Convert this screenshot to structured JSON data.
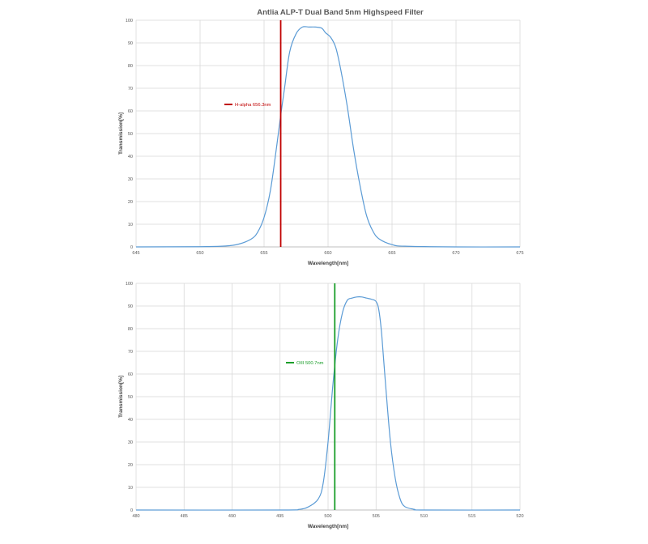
{
  "title": "Antlia ALP-T Dual Band 5nm Highspeed Filter",
  "colors": {
    "curve": "#5b9bd5",
    "halpha": "#c00000",
    "oiii": "#1a9e2a",
    "grid": "#d9d9d9",
    "axis": "#bfbfbf"
  },
  "chart_data": [
    {
      "type": "line",
      "title": "Antlia ALP-T Dual Band 5nm Highspeed Filter",
      "xlabel": "Wavelength[nm]",
      "ylabel": "Transmission[%]",
      "xlim": [
        645,
        675
      ],
      "ylim": [
        0,
        100
      ],
      "xticks": [
        645,
        650,
        655,
        660,
        665,
        670,
        675
      ],
      "yticks": [
        0,
        10,
        20,
        30,
        40,
        50,
        60,
        70,
        80,
        90,
        100
      ],
      "grid": true,
      "series": [
        {
          "x": [
            645,
            650,
            652,
            653,
            654,
            654.5,
            655,
            655.5,
            656,
            656.3,
            656.6,
            657,
            657.5,
            658,
            658.5,
            659,
            659.5,
            659.8,
            660.2,
            660.6,
            661,
            661.5,
            662,
            662.5,
            663,
            663.5,
            664,
            665,
            666,
            670,
            675
          ],
          "y": [
            0,
            0.1,
            0.4,
            1.2,
            3.5,
            6.5,
            13,
            25,
            45,
            58,
            70,
            86,
            94,
            97,
            97,
            97,
            96.5,
            94.5,
            92.5,
            88,
            78,
            62,
            43,
            27,
            14,
            7,
            3.5,
            1,
            0.3,
            0,
            0
          ]
        }
      ],
      "marker": {
        "x": 656.3,
        "label": "H-alpha 656.3nm"
      }
    },
    {
      "type": "line",
      "xlabel": "Wavelength[nm]",
      "ylabel": "Transmission[%]",
      "xlim": [
        480,
        520
      ],
      "ylim": [
        0,
        100
      ],
      "xticks": [
        480,
        485,
        490,
        495,
        500,
        505,
        510,
        515,
        520
      ],
      "yticks": [
        0,
        10,
        20,
        30,
        40,
        50,
        60,
        70,
        80,
        90,
        100
      ],
      "grid": true,
      "series": [
        {
          "x": [
            480,
            495,
            497,
            498,
            499,
            499.5,
            500,
            500.5,
            501,
            501.5,
            502,
            502.5,
            503,
            503.5,
            504,
            504.5,
            505,
            505.3,
            505.6,
            506,
            506.5,
            507,
            507.5,
            508,
            509,
            510,
            520
          ],
          "y": [
            0,
            0,
            0.3,
            1.5,
            5,
            12,
            30,
            55,
            75,
            87,
            92.5,
            93.5,
            94,
            94,
            93.5,
            93,
            92,
            88,
            77,
            55,
            30,
            14,
            5,
            1.5,
            0.3,
            0,
            0
          ]
        }
      ],
      "marker": {
        "x": 500.7,
        "label": "OIII 500.7nm"
      }
    }
  ]
}
